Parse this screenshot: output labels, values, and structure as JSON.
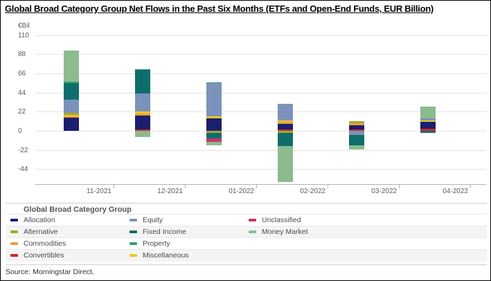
{
  "title": "Global Broad Category Group Net Flows in the Past Six Months (ETFs and Open-End Funds, EUR Billion)",
  "source": "Source: Morningstar Direct.",
  "chart_data": {
    "type": "bar",
    "stacked": true,
    "title": "Global Broad Category Group Net Flows in the Past Six Months (ETFs and Open-End Funds, EUR Billion)",
    "unit_label": "€Bil",
    "xlabel": "",
    "ylabel": "€Bil",
    "ylim": [
      -61,
      112
    ],
    "grid": true,
    "y_ticks": [
      110,
      88,
      66,
      44,
      22,
      0,
      -22,
      -44
    ],
    "categories": [
      "11-2021",
      "12-2021",
      "01-2022",
      "02-2022",
      "03-2022",
      "04-2022"
    ],
    "series": [
      {
        "name": "Convertibles",
        "color": "#d0262b",
        "values": [
          0,
          1.5,
          0,
          1.5,
          1.5,
          2
        ]
      },
      {
        "name": "Allocation",
        "color": "#1b1f6e",
        "values": [
          15,
          16,
          14,
          6.5,
          5,
          8
        ]
      },
      {
        "name": "Commodities",
        "color": "#e9a13b",
        "values": [
          1.5,
          2.5,
          0,
          2.5,
          2.5,
          0
        ]
      },
      {
        "name": "Miscellaneous",
        "color": "#edc829",
        "values": [
          1.5,
          2.5,
          2.5,
          1.5,
          0,
          2
        ]
      },
      {
        "name": "Alternative",
        "color": "#a3a832",
        "values": [
          2.5,
          0,
          -2.5,
          -2,
          2.5,
          0
        ]
      },
      {
        "name": "Equity",
        "color": "#7b93bb",
        "values": [
          15,
          20,
          38,
          19,
          -4.5,
          2
        ]
      },
      {
        "name": "Fixed Income",
        "color": "#0f6e6c",
        "values": [
          19,
          27,
          -6.5,
          -15.5,
          -12.5,
          -2.5
        ]
      },
      {
        "name": "Property",
        "color": "#35a071",
        "values": [
          1.5,
          1.5,
          1,
          0,
          0,
          0
        ]
      },
      {
        "name": "Unclassified",
        "color": "#c9366b",
        "values": [
          0,
          0,
          -3.5,
          0,
          0,
          0
        ]
      },
      {
        "name": "Money Market",
        "color": "#8cbb8e",
        "values": [
          36.5,
          -7,
          -4.5,
          -41.5,
          -4.5,
          13.5
        ]
      }
    ],
    "legend": {
      "title": "Global Broad Category Group",
      "position": "bottom",
      "columns": 3,
      "rows": [
        [
          "Allocation",
          "Equity",
          "Unclassified"
        ],
        [
          "Alternative",
          "Fixed Income",
          "Money Market"
        ],
        [
          "Commodities",
          "Property",
          null
        ],
        [
          "Convertibles",
          "Miscellaneous",
          null
        ]
      ]
    }
  }
}
